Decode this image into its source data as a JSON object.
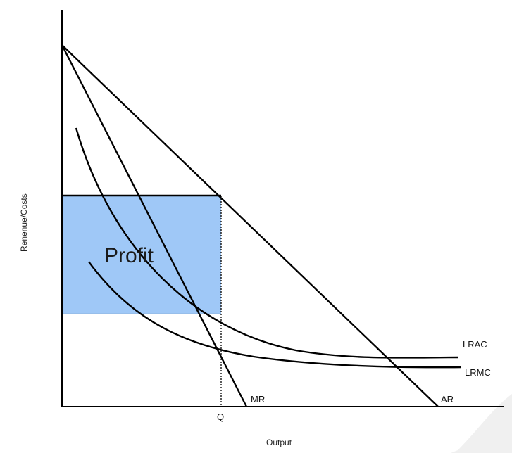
{
  "diagram": {
    "axis_labels": {
      "y": "Renenue/Costs",
      "x": "Output"
    },
    "area_label": "Profit",
    "quantity_marker": "Q",
    "curves": {
      "lrac": "LRAC",
      "lrmc": "LRMC",
      "mr": "MR",
      "ar": "AR"
    },
    "colors": {
      "profit_fill": "#9fc8f7",
      "line": "#000000",
      "watermark": "#e9e9e9"
    }
  }
}
